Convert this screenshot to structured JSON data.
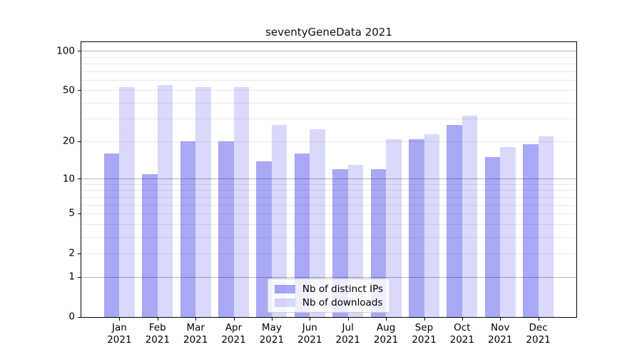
{
  "title": "seventyGeneData 2021",
  "chart_data": {
    "type": "bar",
    "title": "seventyGeneData 2021",
    "categories": [
      "Jan 2021",
      "Feb 2021",
      "Mar 2021",
      "Apr 2021",
      "May 2021",
      "Jun 2021",
      "Jul 2021",
      "Aug 2021",
      "Sep 2021",
      "Oct 2021",
      "Nov 2021",
      "Dec 2021"
    ],
    "series": [
      {
        "name": "Nb of distinct IPs",
        "color": "rgba(0,0,225,0.34)",
        "solid_color": "#a9a9f6",
        "values": [
          16,
          11,
          20,
          20,
          14,
          16,
          12,
          12,
          21,
          27,
          15,
          19
        ]
      },
      {
        "name": "Nb of downloads",
        "color": "rgba(0,0,225,0.15)",
        "solid_color": "#dadaf9",
        "values": [
          53,
          55,
          53,
          53,
          27,
          25,
          13,
          21,
          23,
          32,
          18,
          22
        ]
      }
    ],
    "xlabel": "",
    "ylabel": "",
    "y_scale": "log1p",
    "ylim": [
      0,
      117
    ],
    "y_ticks": [
      0,
      1,
      2,
      5,
      10,
      20,
      50,
      100
    ],
    "grid": "on",
    "grid_major": [
      1,
      10,
      100
    ],
    "grid_minor": [
      2,
      3,
      4,
      5,
      6,
      7,
      8,
      9,
      20,
      30,
      40,
      50,
      60,
      70,
      80,
      90
    ],
    "legend_position": "lower center"
  },
  "colors": {
    "axis": "#000000",
    "grid_major": "#b6b6b6",
    "grid_minor": "#e9e9e9",
    "background": "#ffffff"
  }
}
